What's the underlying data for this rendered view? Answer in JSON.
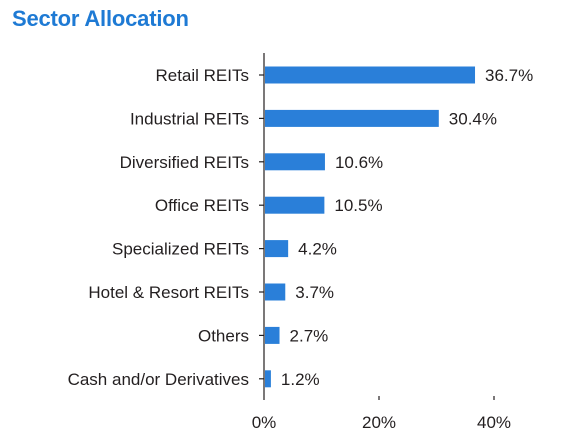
{
  "title": "Sector Allocation",
  "colors": {
    "title": "#1e7ad4",
    "bar": "#2a7fd9",
    "axis": "#231f20",
    "text": "#231f20"
  },
  "chart_data": {
    "type": "bar",
    "orientation": "horizontal",
    "title": "Sector Allocation",
    "categories": [
      "Retail REITs",
      "Industrial REITs",
      "Diversified REITs",
      "Office REITs",
      "Specialized REITs",
      "Hotel & Resort REITs",
      "Others",
      "Cash and/or Derivatives"
    ],
    "values": [
      36.7,
      30.4,
      10.6,
      10.5,
      4.2,
      3.7,
      2.7,
      1.2
    ],
    "value_labels": [
      "36.7%",
      "30.4%",
      "10.6%",
      "10.5%",
      "4.2%",
      "3.7%",
      "2.7%",
      "1.2%"
    ],
    "xlim": [
      0,
      40
    ],
    "xticks": [
      0,
      20,
      40
    ],
    "xtick_labels": [
      "0%",
      "20%",
      "40%"
    ],
    "grid": false,
    "legend": "none"
  }
}
